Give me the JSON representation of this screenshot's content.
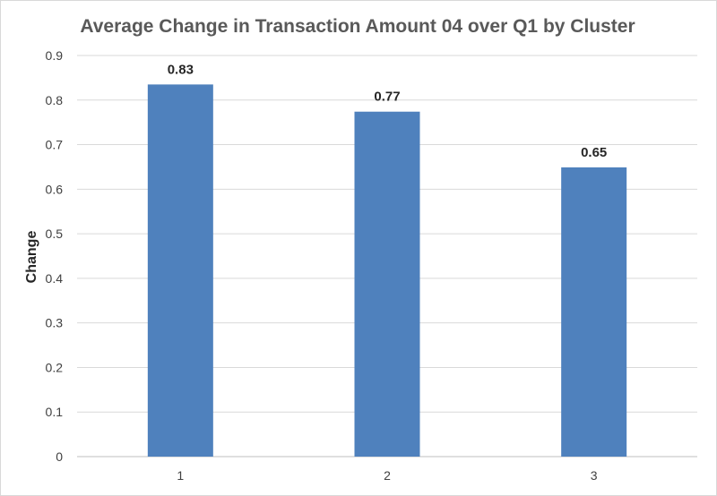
{
  "chart_data": {
    "type": "bar",
    "title": "Average Change in Transaction Amount 04 over Q1 by Cluster",
    "xlabel": "",
    "ylabel": "Change",
    "categories": [
      "1",
      "2",
      "3"
    ],
    "values": [
      0.835,
      0.774,
      0.649
    ],
    "data_labels": [
      "0.83",
      "0.77",
      "0.65"
    ],
    "ylim": [
      0,
      0.9
    ],
    "yticks": [
      "0",
      "0.1",
      "0.2",
      "0.3",
      "0.4",
      "0.5",
      "0.6",
      "0.7",
      "0.8",
      "0.9"
    ],
    "grid": true,
    "legend": "none",
    "bar_color": "#4f81bd"
  }
}
